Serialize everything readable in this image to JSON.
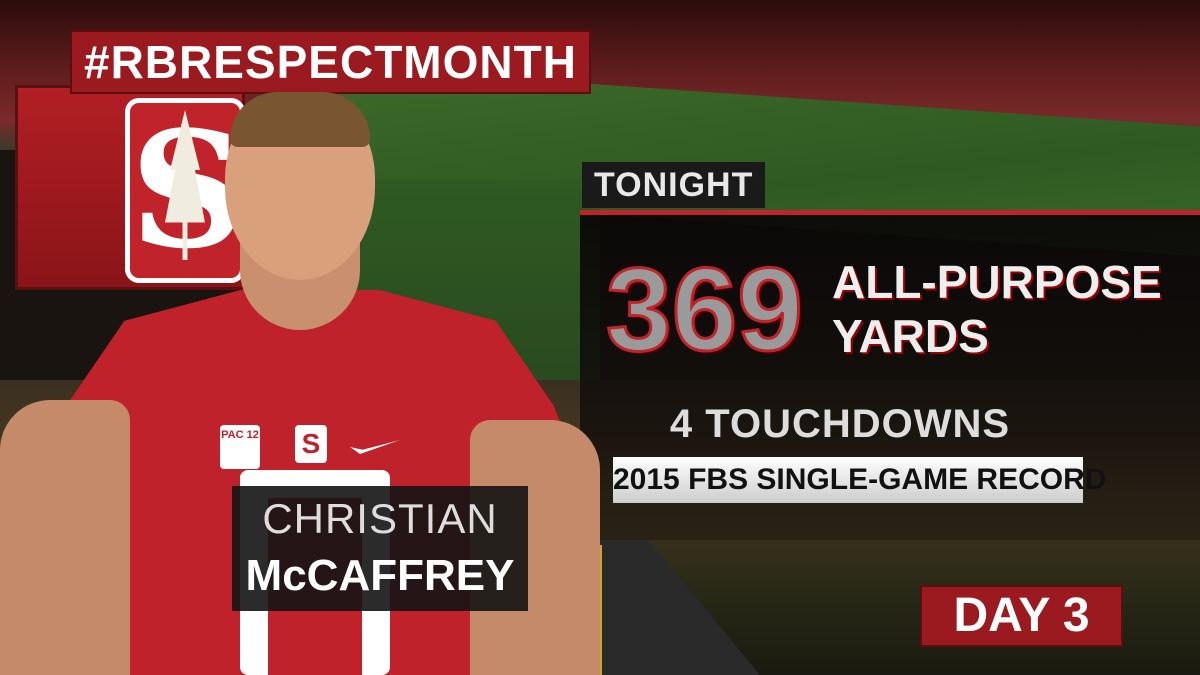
{
  "hashtag": "#RBRESPECTMONTH",
  "panel": {
    "tag": "TONIGHT",
    "stat_value": "369",
    "stat_label_line1": "ALL-PURPOSE",
    "stat_label_line2": "YARDS",
    "secondary_stat": "4 TOUCHDOWNS",
    "record": "2015 FBS SINGLE-GAME RECORD"
  },
  "player": {
    "first_name": "CHRISTIAN",
    "last_name": "McCAFFREY"
  },
  "logos": {
    "school_letter": "S",
    "conference": "PAC 12"
  },
  "day_badge": "DAY 3",
  "colors": {
    "cardinal": "#9a1a1f",
    "jersey": "#c0222b",
    "panel": "#0f0c0a"
  }
}
